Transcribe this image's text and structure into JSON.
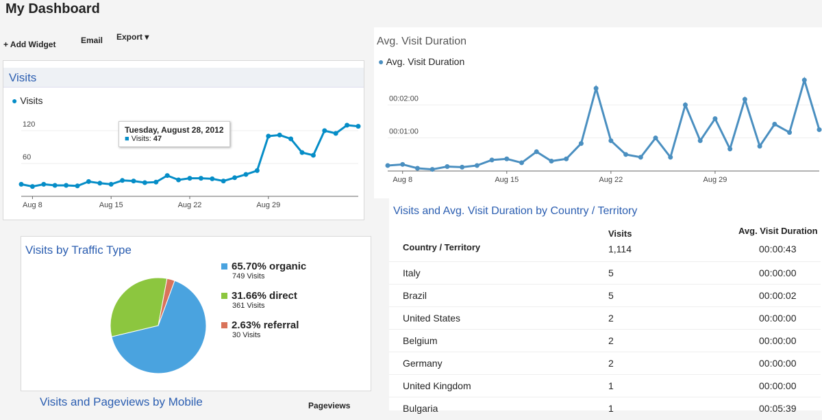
{
  "header": {
    "title": "My Dashboard"
  },
  "toolbar": {
    "add_widget": "+ Add Widget",
    "email": "Email",
    "export": "Export ▾"
  },
  "visits": {
    "title": "Visits",
    "chart": {
      "type": "line",
      "series_name": "Visits",
      "color": "#058dc7",
      "categories": [
        null,
        "Aug 8",
        null,
        null,
        null,
        null,
        null,
        null,
        "Aug 15",
        null,
        null,
        null,
        null,
        null,
        null,
        "Aug 22",
        null,
        null,
        null,
        null,
        null,
        null,
        "Aug 29",
        null,
        null,
        null,
        null,
        null,
        null,
        null,
        null
      ],
      "values": [
        22,
        18,
        22,
        20,
        20,
        19,
        27,
        24,
        22,
        29,
        28,
        25,
        26,
        38,
        30,
        33,
        33,
        32,
        28,
        34,
        40,
        47,
        110,
        112,
        105,
        80,
        75,
        120,
        115,
        130,
        128
      ],
      "ylim": [
        0,
        150
      ],
      "yticks": [
        60,
        120
      ]
    },
    "tooltip": {
      "title": "Tuesday, August 28, 2012",
      "label": "Visits:"
    }
  },
  "duration": {
    "title": "Avg. Visit Duration",
    "chart": {
      "type": "line",
      "series_name": "Avg. Visit Duration",
      "color": "#4a8fc0",
      "categories": [
        null,
        "Aug 8",
        null,
        null,
        null,
        null,
        null,
        null,
        "Aug 15",
        null,
        null,
        null,
        null,
        null,
        null,
        "Aug 22",
        null,
        null,
        null,
        null,
        null,
        null,
        "Aug 29",
        null,
        null,
        null,
        null,
        null,
        null,
        null
      ],
      "values": [
        10,
        12,
        5,
        3,
        8,
        7,
        10,
        20,
        22,
        15,
        35,
        18,
        22,
        50,
        150,
        55,
        30,
        25,
        60,
        25,
        120,
        55,
        95,
        40,
        130,
        45,
        85,
        70,
        165,
        75
      ],
      "ylim": [
        0,
        180
      ],
      "yticks": [
        {
          "value": 60,
          "label": "00:01:00"
        },
        {
          "value": 120,
          "label": "00:02:00"
        }
      ]
    }
  },
  "traffic": {
    "title": "Visits by Traffic Type",
    "chart": {
      "type": "pie",
      "names": [
        "organic",
        "direct",
        "referral"
      ],
      "values": [
        65.7,
        31.66,
        2.63
      ],
      "value_labels": [
        "65.70%",
        "31.66%",
        "2.63%"
      ],
      "visits": [
        "749 Visits",
        "361 Visits",
        "30 Visits"
      ],
      "colors": [
        "#4aa3df",
        "#8cc63f",
        "#d9735a"
      ]
    }
  },
  "mobile": {
    "title": "Visits and Pageviews by Mobile",
    "column": "Pageviews"
  },
  "table": {
    "title": "Visits and Avg. Visit Duration by Country / Territory",
    "columns": [
      "Country / Territory",
      "Visits",
      "Avg. Visit Duration"
    ],
    "total": [
      "1,114",
      "00:00:43"
    ],
    "rows": [
      [
        "Italy",
        "5",
        "00:00:00"
      ],
      [
        "Brazil",
        "5",
        "00:00:02"
      ],
      [
        "United States",
        "2",
        "00:00:00"
      ],
      [
        "Belgium",
        "2",
        "00:00:00"
      ],
      [
        "Germany",
        "2",
        "00:00:00"
      ],
      [
        "United Kingdom",
        "1",
        "00:00:00"
      ],
      [
        "Bulgaria",
        "1",
        "00:05:39"
      ]
    ]
  }
}
